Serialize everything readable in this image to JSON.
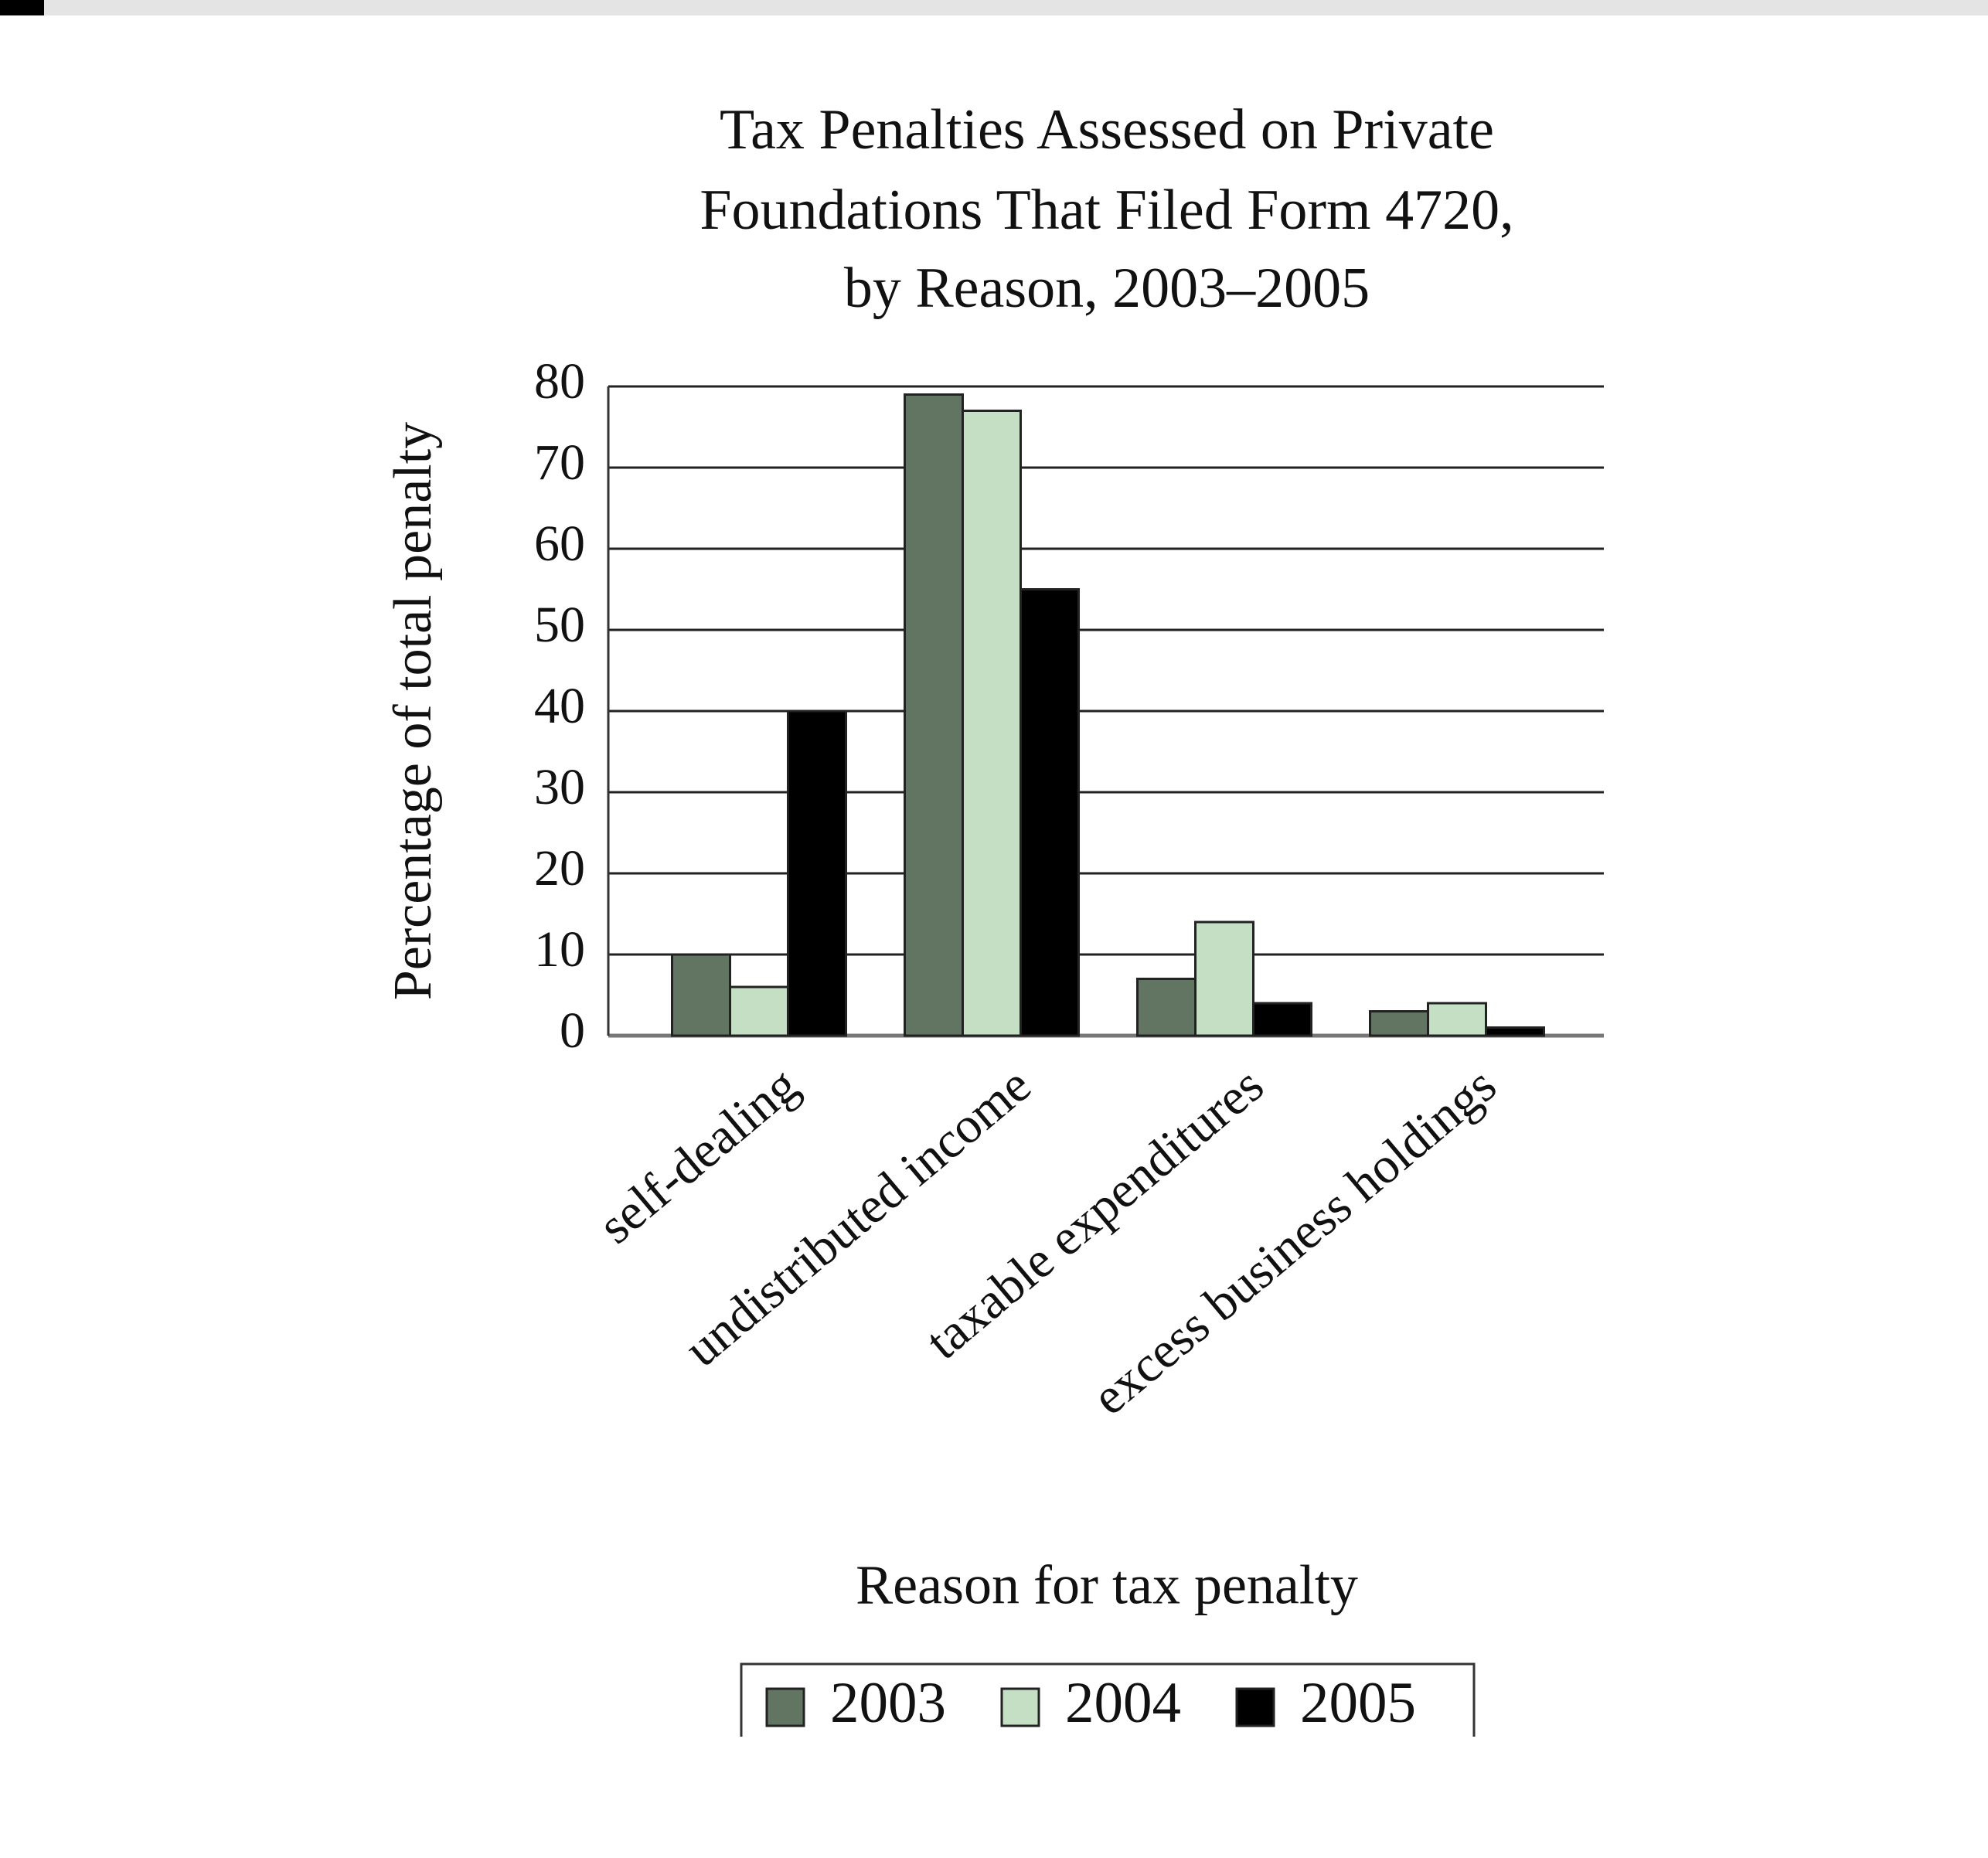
{
  "chart_data": {
    "type": "bar",
    "title": [
      "Tax Penalties Assessed on Private",
      "Foundations That Filed Form 4720,",
      "by Reason, 2003–2005"
    ],
    "y_label": "Percentage of total penalty",
    "x_label": "Reason for tax penalty",
    "categories": [
      "self-dealing",
      "undistributed income",
      "taxable expenditures",
      "excess business holdings"
    ],
    "series": [
      {
        "name": "2003",
        "color": "#627462",
        "values": [
          10,
          79,
          7,
          3
        ]
      },
      {
        "name": "2004",
        "color": "#c5dfc5",
        "values": [
          6,
          77,
          14,
          4
        ]
      },
      {
        "name": "2005",
        "color": "#000000",
        "values": [
          40,
          55,
          4,
          1
        ]
      }
    ],
    "ylim": [
      0,
      80
    ],
    "yticks": [
      0,
      10,
      20,
      30,
      40,
      50,
      60,
      70,
      80
    ],
    "grid": true,
    "legend": "bottom"
  }
}
